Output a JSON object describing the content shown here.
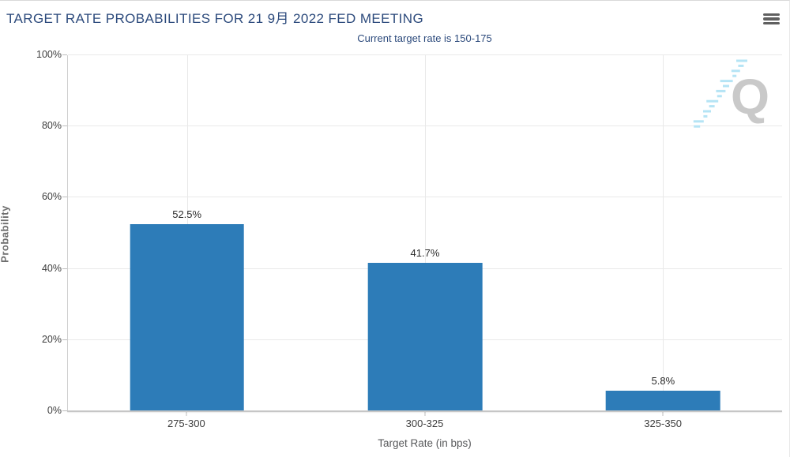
{
  "header": {
    "menu_icon": "hamburger-icon"
  },
  "chart_data": {
    "type": "bar",
    "title": "TARGET RATE PROBABILITIES FOR 21 9月 2022 FED MEETING",
    "subtitle": "Current target rate is 150-175",
    "categories": [
      "275-300",
      "300-325",
      "325-350"
    ],
    "values": [
      52.5,
      41.7,
      5.8
    ],
    "value_labels": [
      "52.5%",
      "41.7%",
      "5.8%"
    ],
    "xlabel": "Target Rate (in bps)",
    "ylabel": "Probability",
    "ylim": [
      0,
      100
    ],
    "y_ticks": [
      {
        "value": 100,
        "label": "100%"
      },
      {
        "value": 80,
        "label": "80%"
      },
      {
        "value": 60,
        "label": "60%"
      },
      {
        "value": 40,
        "label": "40%"
      },
      {
        "value": 20,
        "label": "20%"
      },
      {
        "value": 0,
        "label": "0%"
      }
    ],
    "grid": true,
    "legend": "none",
    "bar_color": "#2d7cb8",
    "watermark_letter": "Q"
  },
  "colors": {
    "title_navy": "#2c4a7c",
    "bar_blue": "#2d7cb8",
    "gridline": "#e9e9e9",
    "axis_line": "#cfcfcf",
    "tick_text": "#3c3c3c",
    "axis_title_gray": "#58595b",
    "watermark_gray": "#c9c9c9",
    "watermark_dash_blue": "#b5e4f5"
  }
}
